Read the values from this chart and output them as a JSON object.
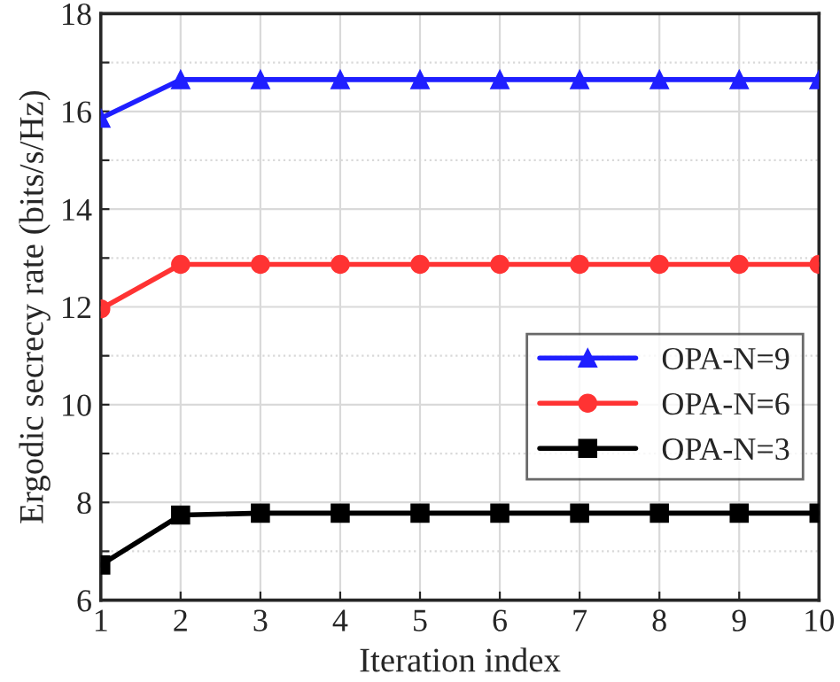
{
  "chart_data": {
    "type": "line",
    "xlabel": "Iteration index",
    "ylabel": "Ergodic secrecy rate (bits/s/Hz)",
    "x": [
      1,
      2,
      3,
      4,
      5,
      6,
      7,
      8,
      9,
      10
    ],
    "series": [
      {
        "name": "OPA-N=9",
        "color": "#1f1fff",
        "marker": "triangle",
        "values": [
          15.86,
          16.65,
          16.65,
          16.65,
          16.65,
          16.65,
          16.65,
          16.65,
          16.65,
          16.65
        ]
      },
      {
        "name": "OPA-N=6",
        "color": "#ff3333",
        "marker": "circle",
        "values": [
          11.96,
          12.87,
          12.87,
          12.87,
          12.87,
          12.87,
          12.87,
          12.87,
          12.87,
          12.87
        ]
      },
      {
        "name": "OPA-N=3",
        "color": "#000000",
        "marker": "square",
        "values": [
          6.72,
          7.74,
          7.78,
          7.78,
          7.78,
          7.78,
          7.78,
          7.78,
          7.78,
          7.78
        ]
      }
    ],
    "xlim": [
      1,
      10
    ],
    "xticks": [
      1,
      2,
      3,
      4,
      5,
      6,
      7,
      8,
      9,
      10
    ],
    "ylim": [
      6,
      18
    ],
    "yticks": [
      6,
      {
        "value": 7,
        "label": null
      },
      8,
      {
        "value": 9,
        "label": null
      },
      10,
      {
        "value": 11,
        "label": null
      },
      12,
      {
        "value": 13,
        "label": null
      },
      14,
      {
        "value": 15,
        "label": null
      },
      16,
      {
        "value": 17,
        "label": null
      },
      18
    ],
    "grid": true,
    "legend": "right",
    "line_style": "solid"
  }
}
